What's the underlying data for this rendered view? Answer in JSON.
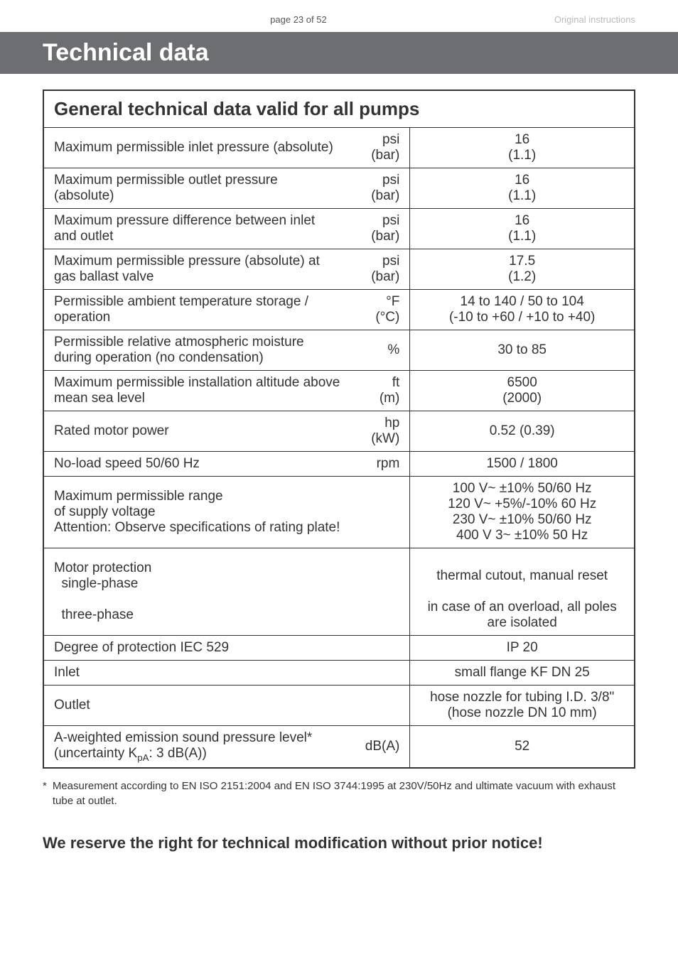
{
  "header": {
    "page_label": "page 23 of 52",
    "right_label": "Original instructions"
  },
  "title": "Technical data",
  "section_title": "General technical data valid for all pumps",
  "rows": [
    {
      "label": "Maximum permissible inlet pressure (absolute)",
      "unit": "psi\n(bar)",
      "value": "16\n(1.1)"
    },
    {
      "label": "Maximum permissible outlet pressure (absolute)",
      "unit": "psi\n(bar)",
      "value": "16\n(1.1)"
    },
    {
      "label": "Maximum pressure difference between inlet and outlet",
      "unit": "psi\n(bar)",
      "value": "16\n(1.1)"
    },
    {
      "label": "Maximum permissible pressure (absolute) at gas ballast valve",
      "unit": "psi\n(bar)",
      "value": "17.5\n(1.2)"
    },
    {
      "label": "Permissible ambient temperature storage / operation",
      "unit": "°F\n(°C)",
      "value": "14 to 140 / 50 to 104\n(-10 to +60 / +10 to +40)"
    },
    {
      "label": "Permissible relative atmospheric moisture during operation (no condensation)",
      "unit": "%",
      "value": "30 to 85"
    },
    {
      "label": "Maximum permissible installation altitude above mean sea level",
      "unit": "ft\n(m)",
      "value": "6500\n(2000)"
    },
    {
      "label": "Rated motor power",
      "unit": "hp (kW)",
      "value": "0.52 (0.39)"
    },
    {
      "label": "No-load speed 50/60 Hz",
      "unit": "rpm",
      "value": "1500 / 1800"
    },
    {
      "label": "Maximum permissible range\nof supply voltage\nAttention: Observe specifications of rating plate!",
      "unit": "",
      "value": "100 V~ ±10% 50/60 Hz\n120 V~ +5%/-10% 60 Hz\n230 V~ ±10% 50/60 Hz\n400 V 3~ ±10% 50 Hz"
    },
    {
      "label": "Motor protection\n  single-phase\n\n  three-phase",
      "unit": "",
      "value": "\nthermal cutout, manual reset\n\nin case of an overload, all poles are isolated"
    },
    {
      "label": "Degree of protection IEC 529",
      "unit": "",
      "value": "IP 20"
    },
    {
      "label": "Inlet",
      "unit": "",
      "value": "small flange KF DN 25"
    },
    {
      "label": "Outlet",
      "unit": "",
      "value": "hose nozzle for tubing I.D. 3/8\" (hose nozzle DN 10 mm)"
    },
    {
      "label": "A-weighted emission sound pressure level* (uncertainty KpA: 3 dB(A))",
      "unit": "dB(A)",
      "value": "52"
    }
  ],
  "footnote": "Measurement according to EN ISO 2151:2004 and EN ISO 3744:1995 at 230V/50Hz and ultimate vacuum with exhaust tube at outlet.",
  "bottom_notice": "We reserve the right for technical modification without prior notice!",
  "colors": {
    "title_bg": "#6d6e71",
    "title_fg": "#ffffff",
    "border": "#333333",
    "text": "#333333",
    "muted": "#888888"
  }
}
